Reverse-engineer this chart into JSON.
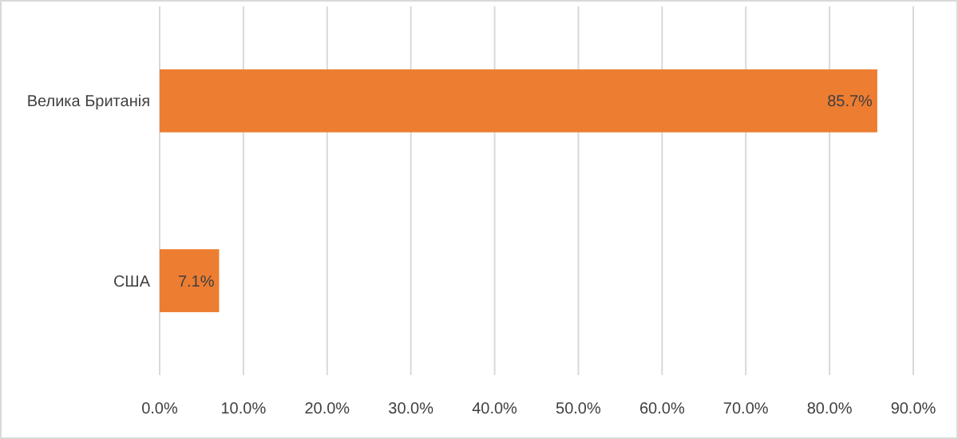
{
  "chart_data": {
    "type": "bar",
    "orientation": "horizontal",
    "categories": [
      "Велика Британія",
      "США"
    ],
    "values": [
      85.7,
      7.1
    ],
    "value_labels": [
      "85.7%",
      "7.1%"
    ],
    "color": "#ed7d31",
    "xlim": [
      0,
      90
    ],
    "xticks": [
      {
        "value": 0,
        "label": "0.0%"
      },
      {
        "value": 10,
        "label": "10.0%"
      },
      {
        "value": 20,
        "label": "20.0%"
      },
      {
        "value": 30,
        "label": "30.0%"
      },
      {
        "value": 40,
        "label": "40.0%"
      },
      {
        "value": 50,
        "label": "50.0%"
      },
      {
        "value": 60,
        "label": "60.0%"
      },
      {
        "value": 70,
        "label": "70.0%"
      },
      {
        "value": 80,
        "label": "80.0%"
      },
      {
        "value": 90,
        "label": "90.0%"
      }
    ],
    "grid": "x"
  }
}
